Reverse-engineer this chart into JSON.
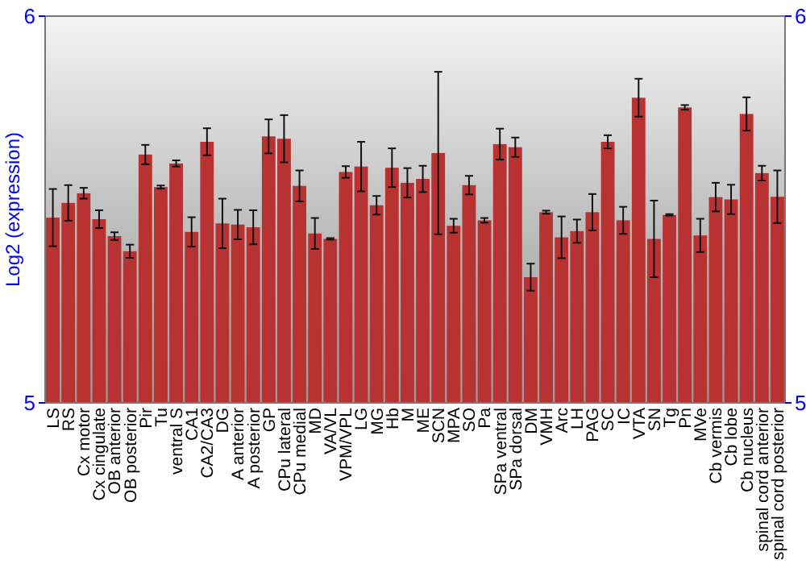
{
  "chart_data": {
    "type": "bar",
    "ylabel": "Log2 (expression)",
    "categories": [
      "LS",
      "RS",
      "Cx motor",
      "Cx cingulate",
      "OB anterior",
      "OB posterior",
      "Pir",
      "Tu",
      "ventral S",
      "CA1",
      "CA2/CA3",
      "DG",
      "A anterior",
      "A posterior",
      "GP",
      "CPu lateral",
      "CPu medial",
      "MD",
      "VA/VL",
      "VPM/VPL",
      "LG",
      "MG",
      "Hb",
      "M",
      "ME",
      "SCN",
      "MPA",
      "SO",
      "Pa",
      "SPa ventral",
      "SPa dorsal",
      "DM",
      "VMH",
      "Arc",
      "LH",
      "PAG",
      "SC",
      "IC",
      "VTA",
      "SN",
      "Tg",
      "Pn",
      "MVe",
      "Cb vermis",
      "Cb lobe",
      "Cb nucleus",
      "spinal cord anterior",
      "spinal cord posterior"
    ],
    "values": [
      5.479,
      5.517,
      5.542,
      5.475,
      5.431,
      5.392,
      5.642,
      5.558,
      5.619,
      5.442,
      5.675,
      5.464,
      5.461,
      5.454,
      5.689,
      5.683,
      5.561,
      5.438,
      5.424,
      5.597,
      5.611,
      5.511,
      5.608,
      5.569,
      5.579,
      5.646,
      5.458,
      5.563,
      5.472,
      5.669,
      5.661,
      5.325,
      5.493,
      5.428,
      5.444,
      5.493,
      5.675,
      5.472,
      5.789,
      5.424,
      5.486,
      5.764,
      5.433,
      5.532,
      5.526,
      5.747,
      5.594,
      5.533
    ],
    "errors": [
      0.074,
      0.046,
      0.014,
      0.023,
      0.01,
      0.017,
      0.025,
      0.004,
      0.008,
      0.038,
      0.035,
      0.064,
      0.038,
      0.044,
      0.044,
      0.061,
      0.04,
      0.04,
      0.002,
      0.015,
      0.064,
      0.024,
      0.05,
      0.038,
      0.034,
      0.21,
      0.018,
      0.024,
      0.006,
      0.04,
      0.025,
      0.035,
      0.004,
      0.054,
      0.03,
      0.047,
      0.017,
      0.035,
      0.049,
      0.099,
      0.002,
      0.006,
      0.043,
      0.037,
      0.038,
      0.043,
      0.019,
      0.068
    ],
    "color": "#b83232",
    "ylim": [
      5,
      6
    ],
    "yticks": [
      5,
      6
    ],
    "y2lim": [
      5,
      6
    ],
    "y2ticks": [
      5,
      6
    ]
  }
}
